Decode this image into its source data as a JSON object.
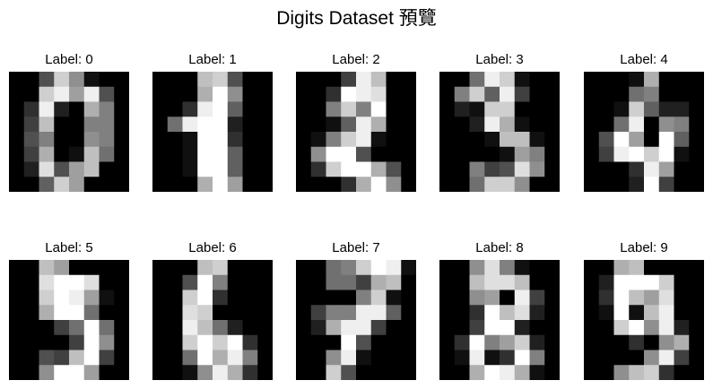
{
  "title": "Digits Dataset 預覽",
  "colormap": "gray",
  "chart_data": [
    {
      "type": "heatmap",
      "title": "Label: 0",
      "grid": false,
      "value_range": [
        0,
        16
      ],
      "values": [
        [
          0,
          0,
          5,
          13,
          9,
          1,
          0,
          0
        ],
        [
          0,
          0,
          13,
          15,
          10,
          15,
          5,
          0
        ],
        [
          0,
          3,
          15,
          2,
          0,
          11,
          8,
          0
        ],
        [
          0,
          4,
          12,
          0,
          0,
          8,
          8,
          0
        ],
        [
          0,
          5,
          8,
          0,
          0,
          9,
          8,
          0
        ],
        [
          0,
          4,
          11,
          0,
          1,
          12,
          7,
          0
        ],
        [
          0,
          2,
          14,
          5,
          10,
          12,
          0,
          0
        ],
        [
          0,
          0,
          6,
          13,
          10,
          0,
          0,
          0
        ]
      ]
    },
    {
      "type": "heatmap",
      "title": "Label: 1",
      "grid": false,
      "value_range": [
        0,
        16
      ],
      "values": [
        [
          0,
          0,
          0,
          12,
          13,
          5,
          0,
          0
        ],
        [
          0,
          0,
          0,
          11,
          16,
          9,
          0,
          0
        ],
        [
          0,
          0,
          3,
          15,
          16,
          6,
          0,
          0
        ],
        [
          0,
          7,
          15,
          16,
          16,
          2,
          0,
          0
        ],
        [
          0,
          0,
          1,
          16,
          16,
          3,
          0,
          0
        ],
        [
          0,
          0,
          1,
          16,
          16,
          6,
          0,
          0
        ],
        [
          0,
          0,
          1,
          16,
          16,
          6,
          0,
          0
        ],
        [
          0,
          0,
          0,
          11,
          16,
          10,
          0,
          0
        ]
      ]
    },
    {
      "type": "heatmap",
      "title": "Label: 2",
      "grid": false,
      "value_range": [
        0,
        16
      ],
      "values": [
        [
          0,
          0,
          0,
          4,
          15,
          12,
          0,
          0
        ],
        [
          0,
          0,
          3,
          16,
          15,
          14,
          0,
          0
        ],
        [
          0,
          0,
          8,
          13,
          8,
          16,
          0,
          0
        ],
        [
          0,
          0,
          1,
          6,
          15,
          11,
          0,
          0
        ],
        [
          0,
          1,
          8,
          13,
          15,
          1,
          0,
          0
        ],
        [
          0,
          9,
          16,
          16,
          5,
          0,
          0,
          0
        ],
        [
          0,
          3,
          13,
          16,
          16,
          11,
          5,
          0
        ],
        [
          0,
          0,
          0,
          3,
          11,
          16,
          9,
          0
        ]
      ]
    },
    {
      "type": "heatmap",
      "title": "Label: 3",
      "grid": false,
      "value_range": [
        0,
        16
      ],
      "values": [
        [
          0,
          0,
          7,
          15,
          13,
          1,
          0,
          0
        ],
        [
          0,
          8,
          13,
          6,
          15,
          4,
          0,
          0
        ],
        [
          0,
          2,
          1,
          13,
          13,
          0,
          0,
          0
        ],
        [
          0,
          0,
          2,
          15,
          11,
          1,
          0,
          0
        ],
        [
          0,
          0,
          0,
          1,
          12,
          12,
          1,
          0
        ],
        [
          0,
          0,
          0,
          0,
          1,
          10,
          8,
          0
        ],
        [
          0,
          0,
          8,
          4,
          5,
          14,
          9,
          0
        ],
        [
          0,
          0,
          7,
          13,
          13,
          9,
          0,
          0
        ]
      ]
    },
    {
      "type": "heatmap",
      "title": "Label: 4",
      "grid": false,
      "value_range": [
        0,
        16
      ],
      "values": [
        [
          0,
          0,
          0,
          1,
          11,
          0,
          0,
          0
        ],
        [
          0,
          0,
          0,
          7,
          8,
          0,
          0,
          0
        ],
        [
          0,
          0,
          1,
          13,
          6,
          2,
          2,
          0
        ],
        [
          0,
          0,
          7,
          15,
          0,
          9,
          8,
          0
        ],
        [
          0,
          5,
          16,
          10,
          0,
          16,
          6,
          0
        ],
        [
          0,
          4,
          15,
          16,
          13,
          16,
          1,
          0
        ],
        [
          0,
          0,
          0,
          3,
          15,
          10,
          0,
          0
        ],
        [
          0,
          0,
          0,
          2,
          16,
          4,
          0,
          0
        ]
      ]
    },
    {
      "type": "heatmap",
      "title": "Label: 5",
      "grid": false,
      "value_range": [
        0,
        16
      ],
      "values": [
        [
          0,
          0,
          12,
          10,
          0,
          0,
          0,
          0
        ],
        [
          0,
          0,
          14,
          16,
          16,
          14,
          0,
          0
        ],
        [
          0,
          0,
          13,
          16,
          15,
          10,
          1,
          0
        ],
        [
          0,
          0,
          11,
          16,
          16,
          7,
          0,
          0
        ],
        [
          0,
          0,
          0,
          4,
          7,
          16,
          7,
          0
        ],
        [
          0,
          0,
          0,
          0,
          4,
          16,
          9,
          0
        ],
        [
          0,
          0,
          5,
          4,
          12,
          16,
          4,
          0
        ],
        [
          0,
          0,
          9,
          16,
          16,
          10,
          0,
          0
        ]
      ]
    },
    {
      "type": "heatmap",
      "title": "Label: 6",
      "grid": false,
      "value_range": [
        0,
        16
      ],
      "values": [
        [
          0,
          0,
          0,
          12,
          13,
          0,
          0,
          0
        ],
        [
          0,
          0,
          5,
          16,
          8,
          0,
          0,
          0
        ],
        [
          0,
          0,
          13,
          16,
          3,
          0,
          0,
          0
        ],
        [
          0,
          0,
          14,
          13,
          0,
          0,
          0,
          0
        ],
        [
          0,
          0,
          15,
          12,
          7,
          2,
          0,
          0
        ],
        [
          0,
          0,
          13,
          16,
          13,
          16,
          3,
          0
        ],
        [
          0,
          0,
          7,
          16,
          11,
          15,
          8,
          0
        ],
        [
          0,
          0,
          1,
          9,
          15,
          11,
          3,
          0
        ]
      ]
    },
    {
      "type": "heatmap",
      "title": "Label: 7",
      "grid": false,
      "value_range": [
        0,
        16
      ],
      "values": [
        [
          0,
          0,
          7,
          8,
          13,
          16,
          15,
          1
        ],
        [
          0,
          0,
          7,
          7,
          4,
          11,
          12,
          0
        ],
        [
          0,
          0,
          0,
          0,
          8,
          13,
          1,
          0
        ],
        [
          0,
          4,
          8,
          8,
          15,
          15,
          6,
          0
        ],
        [
          0,
          2,
          11,
          15,
          15,
          4,
          0,
          0
        ],
        [
          0,
          0,
          0,
          16,
          5,
          0,
          0,
          0
        ],
        [
          0,
          0,
          9,
          15,
          1,
          0,
          0,
          0
        ],
        [
          0,
          0,
          13,
          5,
          0,
          0,
          0,
          0
        ]
      ]
    },
    {
      "type": "heatmap",
      "title": "Label: 8",
      "grid": false,
      "value_range": [
        0,
        16
      ],
      "values": [
        [
          0,
          0,
          9,
          14,
          8,
          1,
          0,
          0
        ],
        [
          0,
          0,
          12,
          14,
          14,
          12,
          0,
          0
        ],
        [
          0,
          0,
          9,
          10,
          0,
          15,
          4,
          0
        ],
        [
          0,
          0,
          3,
          16,
          12,
          14,
          2,
          0
        ],
        [
          0,
          0,
          4,
          16,
          16,
          2,
          0,
          0
        ],
        [
          0,
          3,
          16,
          8,
          10,
          13,
          2,
          0
        ],
        [
          0,
          1,
          15,
          1,
          3,
          16,
          8,
          0
        ],
        [
          0,
          0,
          11,
          16,
          15,
          11,
          1,
          0
        ]
      ]
    },
    {
      "type": "heatmap",
      "title": "Label: 9",
      "grid": false,
      "value_range": [
        0,
        16
      ],
      "values": [
        [
          0,
          0,
          11,
          12,
          0,
          0,
          0,
          0
        ],
        [
          0,
          2,
          16,
          16,
          16,
          13,
          0,
          0
        ],
        [
          0,
          3,
          16,
          12,
          10,
          14,
          0,
          0
        ],
        [
          0,
          1,
          16,
          1,
          12,
          15,
          0,
          0
        ],
        [
          0,
          0,
          13,
          16,
          9,
          15,
          2,
          0
        ],
        [
          0,
          0,
          0,
          3,
          0,
          9,
          11,
          0
        ],
        [
          0,
          0,
          0,
          0,
          9,
          15,
          4,
          0
        ],
        [
          0,
          0,
          9,
          12,
          13,
          3,
          0,
          0
        ]
      ]
    }
  ]
}
